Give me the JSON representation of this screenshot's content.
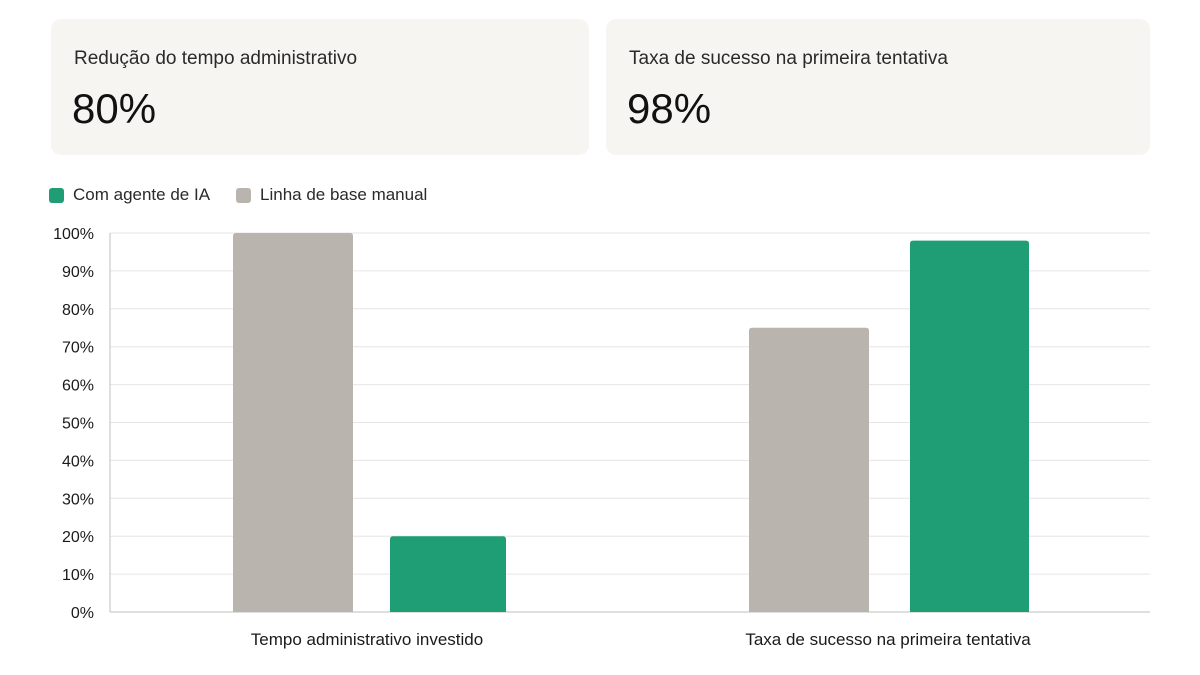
{
  "kpis": [
    {
      "label": "Redução do tempo administrativo",
      "value": "80%"
    },
    {
      "label": "Taxa de sucesso na primeira tentativa",
      "value": "98%"
    }
  ],
  "colors": {
    "ai": "#1f9d74",
    "baseline": "#b9b5ae",
    "grid": "#e6e6e6",
    "axis": "#bfbfbf",
    "card_bg": "#f6f5f1"
  },
  "chart_data": {
    "type": "bar",
    "categories": [
      "Tempo administrativo investido",
      "Taxa de sucesso na primeira tentativa"
    ],
    "series": [
      {
        "name": "Linha de base manual",
        "values": [
          100,
          75
        ],
        "color": "#b9b5ae"
      },
      {
        "name": "Com agente de IA",
        "values": [
          20,
          98
        ],
        "color": "#1f9d74"
      }
    ],
    "legend": [
      "Com agente de IA",
      "Linha de base manual"
    ],
    "yticks": [
      "0%",
      "10%",
      "20%",
      "30%",
      "40%",
      "50%",
      "60%",
      "70%",
      "80%",
      "90%",
      "100%"
    ],
    "ylim": [
      0,
      100
    ],
    "grid": true,
    "legend_position": "top-left"
  }
}
